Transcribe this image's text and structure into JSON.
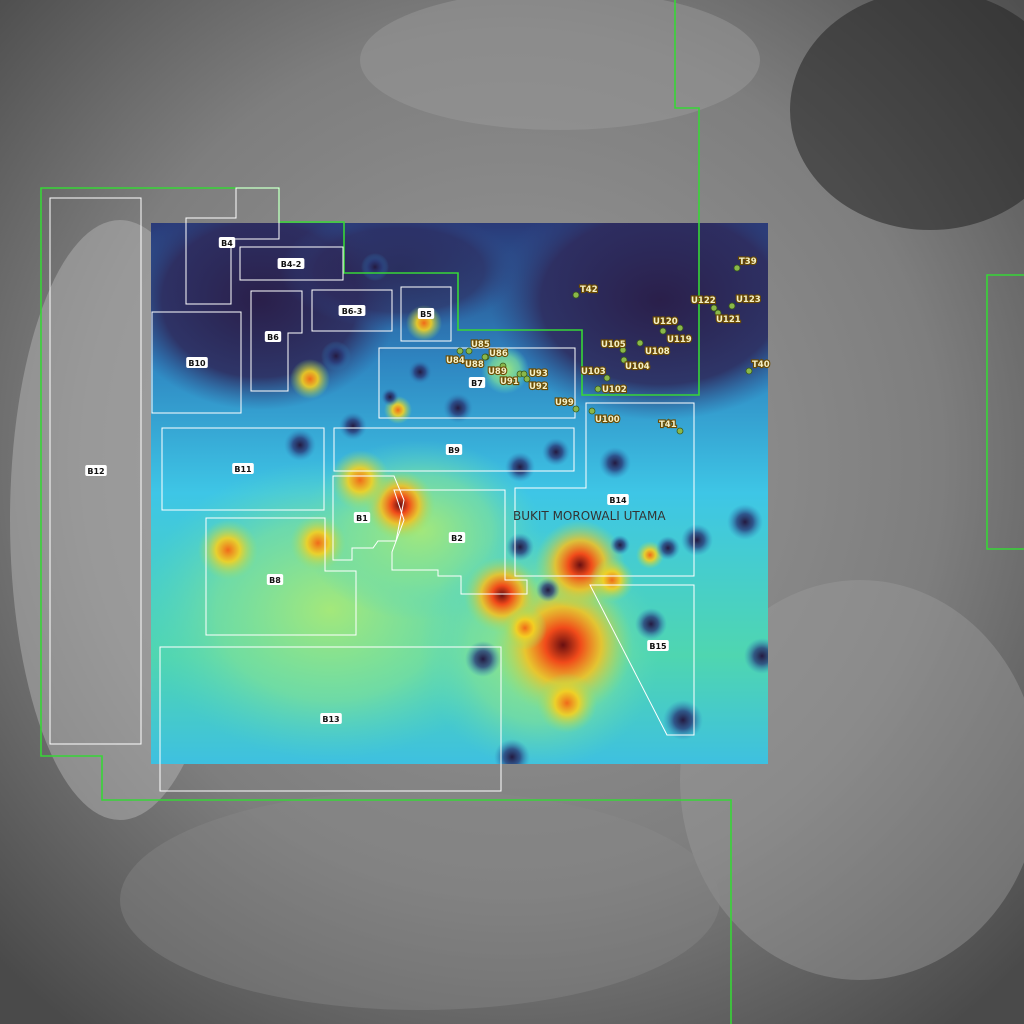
{
  "map": {
    "area_label": "BUKIT MOROWALI UTAMA",
    "blocks": [
      "B4",
      "B4-2",
      "B6-3",
      "B5",
      "B6",
      "B10",
      "B7",
      "B9",
      "B11",
      "B14",
      "B1",
      "B2",
      "B8",
      "B15",
      "B13",
      "B12"
    ],
    "points": [
      "T42",
      "T39",
      "U122",
      "U123",
      "U120",
      "U121",
      "U119",
      "U105",
      "U108",
      "U104",
      "U85",
      "U86",
      "U84",
      "U88",
      "U89",
      "U91",
      "U93",
      "U92",
      "U103",
      "U102",
      "U99",
      "U100",
      "T41",
      "T40"
    ],
    "colors": {
      "boundary": "#37d637",
      "block_outline": "#ffffff",
      "point_marker": "#8ab84a",
      "heat_low": "#2a2050",
      "heat_mid": "#3ec6e6",
      "heat_high": "#f04a1a"
    }
  }
}
